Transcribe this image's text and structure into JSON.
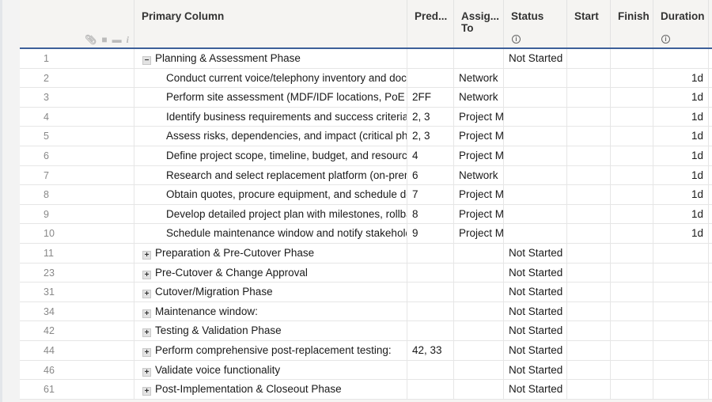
{
  "header": {
    "primary": "Primary Column",
    "pred": "Pred...",
    "assign": "Assig... To",
    "status": "Status",
    "start": "Start",
    "finish": "Finish",
    "duration": "Duration",
    "info_icon": "i"
  },
  "header_icons": [
    "attachment-icon",
    "comment-icon",
    "proof-icon",
    "info-icon"
  ],
  "rows": [
    {
      "num": "1",
      "name": "Planning & Assessment Phase",
      "level": 0,
      "toggle": "−",
      "pred": "",
      "assign": "",
      "status": "Not Started",
      "duration": ""
    },
    {
      "num": "2",
      "name": "Conduct current voice/telephony inventory and docu",
      "level": 1,
      "toggle": "",
      "pred": "",
      "assign": "Network",
      "status": "",
      "duration": "1d"
    },
    {
      "num": "3",
      "name": "Perform site assessment (MDF/IDF locations, PoE :",
      "level": 1,
      "toggle": "",
      "pred": "2FF",
      "assign": "Network",
      "status": "",
      "duration": "1d"
    },
    {
      "num": "4",
      "name": "Identify business requirements and success criteria",
      "level": 1,
      "toggle": "",
      "pred": "2, 3",
      "assign": "Project M",
      "status": "",
      "duration": "1d"
    },
    {
      "num": "5",
      "name": "Assess risks, dependencies, and impact (critical pho",
      "level": 1,
      "toggle": "",
      "pred": "2, 3",
      "assign": "Project M",
      "status": "",
      "duration": "1d"
    },
    {
      "num": "6",
      "name": "Define project scope, timeline, budget, and resource",
      "level": 1,
      "toggle": "",
      "pred": "4",
      "assign": "Project M",
      "status": "",
      "duration": "1d"
    },
    {
      "num": "7",
      "name": "Research and select replacement platform (on-prem",
      "level": 1,
      "toggle": "",
      "pred": "6",
      "assign": "Network",
      "status": "",
      "duration": "1d"
    },
    {
      "num": "8",
      "name": "Obtain quotes, procure equipment, and schedule de",
      "level": 1,
      "toggle": "",
      "pred": "7",
      "assign": "Project M",
      "status": "",
      "duration": "1d"
    },
    {
      "num": "9",
      "name": "Develop detailed project plan with milestones, rollba",
      "level": 1,
      "toggle": "",
      "pred": "8",
      "assign": "Project M",
      "status": "",
      "duration": "1d"
    },
    {
      "num": "10",
      "name": "Schedule maintenance window and notify stakeholde",
      "level": 1,
      "toggle": "",
      "pred": "9",
      "assign": "Project M",
      "status": "",
      "duration": "1d"
    },
    {
      "num": "11",
      "name": "Preparation & Pre-Cutover Phase",
      "level": 0,
      "toggle": "+",
      "pred": "",
      "assign": "",
      "status": "Not Started",
      "duration": ""
    },
    {
      "num": "23",
      "name": "Pre-Cutover & Change Approval",
      "level": 0,
      "toggle": "+",
      "pred": "",
      "assign": "",
      "status": "Not Started",
      "duration": ""
    },
    {
      "num": "31",
      "name": "Cutover/Migration Phase",
      "level": 0,
      "toggle": "+",
      "pred": "",
      "assign": "",
      "status": "Not Started",
      "duration": ""
    },
    {
      "num": "34",
      "name": "Maintenance window:",
      "level": 0,
      "toggle": "+",
      "pred": "",
      "assign": "",
      "status": "Not Started",
      "duration": ""
    },
    {
      "num": "42",
      "name": "Testing & Validation Phase",
      "level": 0,
      "toggle": "+",
      "pred": "",
      "assign": "",
      "status": "Not Started",
      "duration": ""
    },
    {
      "num": "44",
      "name": "Perform comprehensive post-replacement testing:",
      "level": 0,
      "toggle": "+",
      "pred": "42, 33",
      "assign": "",
      "status": "Not Started",
      "duration": ""
    },
    {
      "num": "46",
      "name": "Validate voice functionality",
      "level": 0,
      "toggle": "+",
      "pred": "",
      "assign": "",
      "status": "Not Started",
      "duration": ""
    },
    {
      "num": "61",
      "name": "Post-Implementation & Closeout Phase",
      "level": 0,
      "toggle": "+",
      "pred": "",
      "assign": "",
      "status": "Not Started",
      "duration": ""
    }
  ]
}
